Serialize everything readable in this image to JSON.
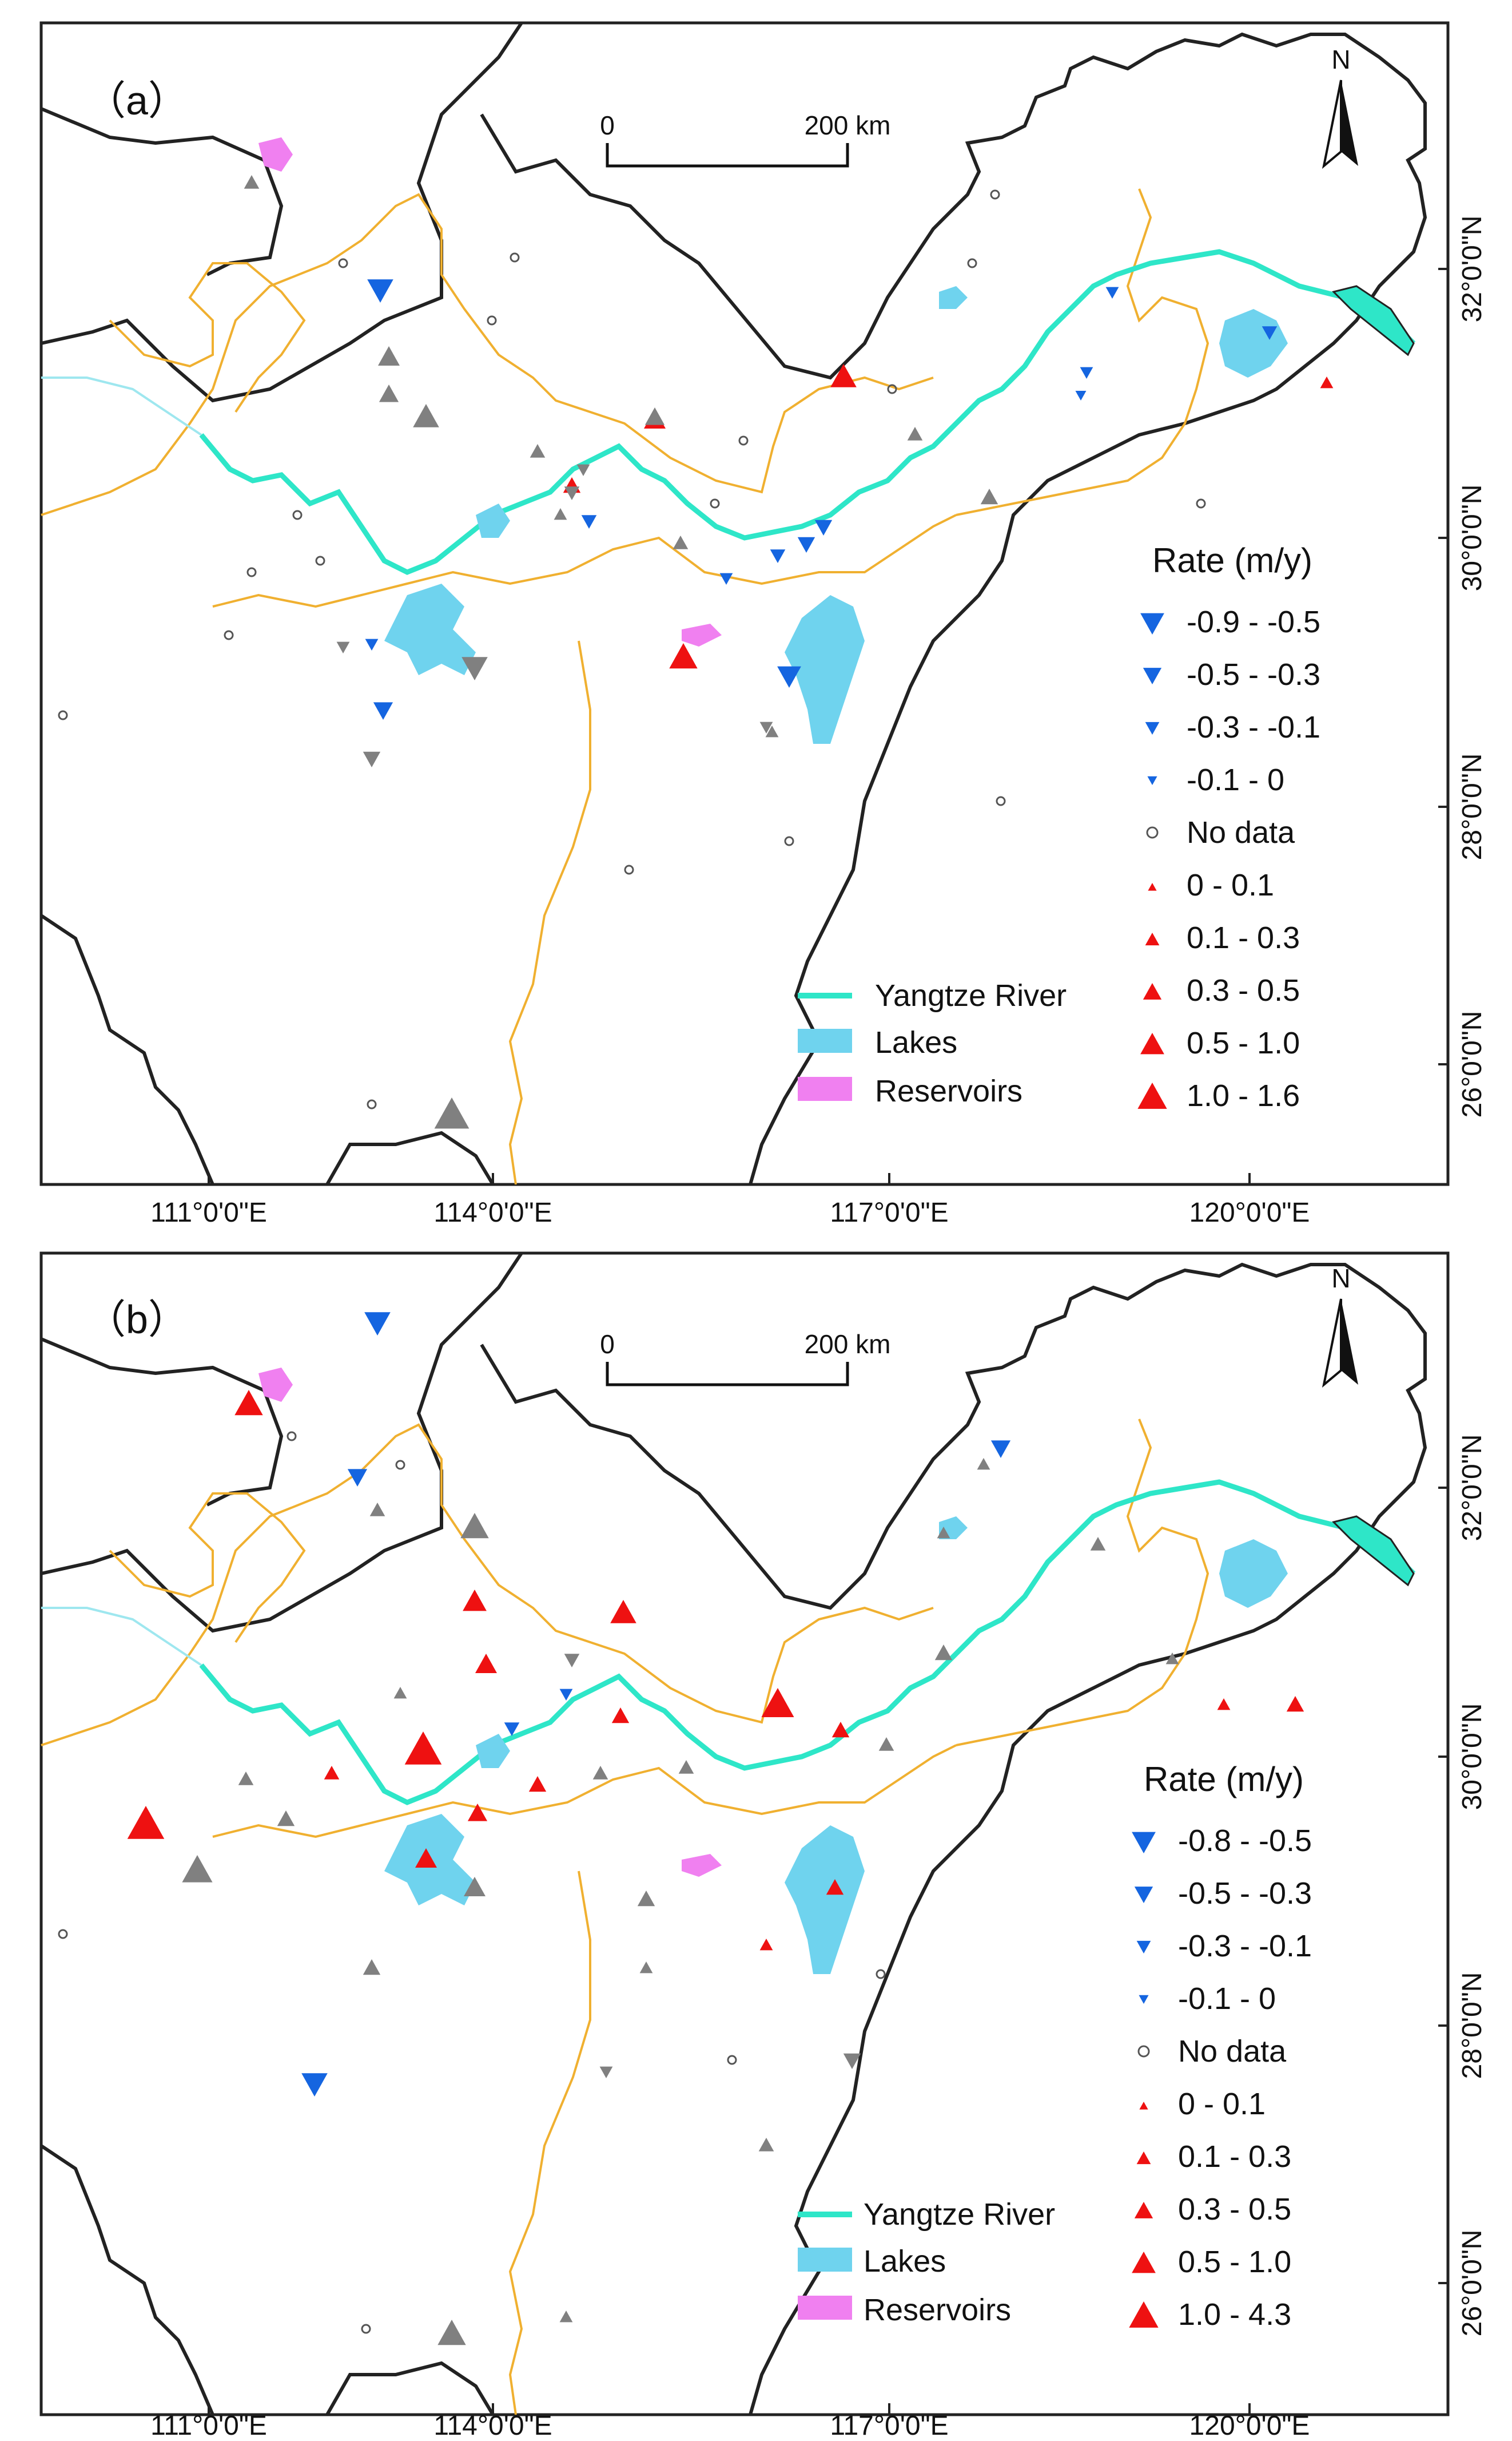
{
  "panels": [
    {
      "label": "（a）",
      "north_label": "N",
      "scale": {
        "start": "0",
        "end": "200 km"
      },
      "lat_ticks": [
        "32°0'0\"N",
        "30°0'0\"N",
        "28°0'0\"N",
        "26°0'0\"N"
      ],
      "lon_ticks": [
        "111°0'0\"E",
        "114°0'0\"E",
        "117°0'0\"E",
        "120°0'0\"E"
      ],
      "legend_title": "Rate (m/y)",
      "legend_items": [
        "-0.9 - -0.5",
        "-0.5 - -0.3",
        "-0.3 - -0.1",
        "-0.1 - 0",
        "No data",
        "0 - 0.1",
        "0.1 - 0.3",
        "0.3 - 0.5",
        "0.5 - 1.0",
        "1.0 - 1.6"
      ],
      "feature_legend": [
        "Yangtze River",
        "Lakes",
        "Reservoirs"
      ]
    },
    {
      "label": "（b）",
      "north_label": "N",
      "scale": {
        "start": "0",
        "end": "200 km"
      },
      "lat_ticks": [
        "32°0'0\"N",
        "30°0'0\"N",
        "28°0'0\"N",
        "26°0'0\"N"
      ],
      "lon_ticks": [
        "111°0'0\"E",
        "114°0'0\"E",
        "117°0'0\"E",
        "120°0'0\"E"
      ],
      "legend_title": "Rate (m/y)",
      "legend_items": [
        "-0.8 - -0.5",
        "-0.5 - -0.3",
        "-0.3 - -0.1",
        "-0.1 - 0",
        "No data",
        "0 - 0.1",
        "0.1 - 0.3",
        "0.3 - 0.5",
        "0.5 - 1.0",
        "1.0 - 4.3"
      ],
      "feature_legend": [
        "Yangtze River",
        "Lakes",
        "Reservoirs"
      ]
    }
  ],
  "colors": {
    "decrease": "#1565e0",
    "increase": "#ee1111",
    "gray_marker": "#808080",
    "river": "#2ee6c8",
    "lake": "#6fd3ee",
    "reservoir": "#f080f0",
    "province_border": "#f0b030",
    "coast_border": "#222222"
  }
}
